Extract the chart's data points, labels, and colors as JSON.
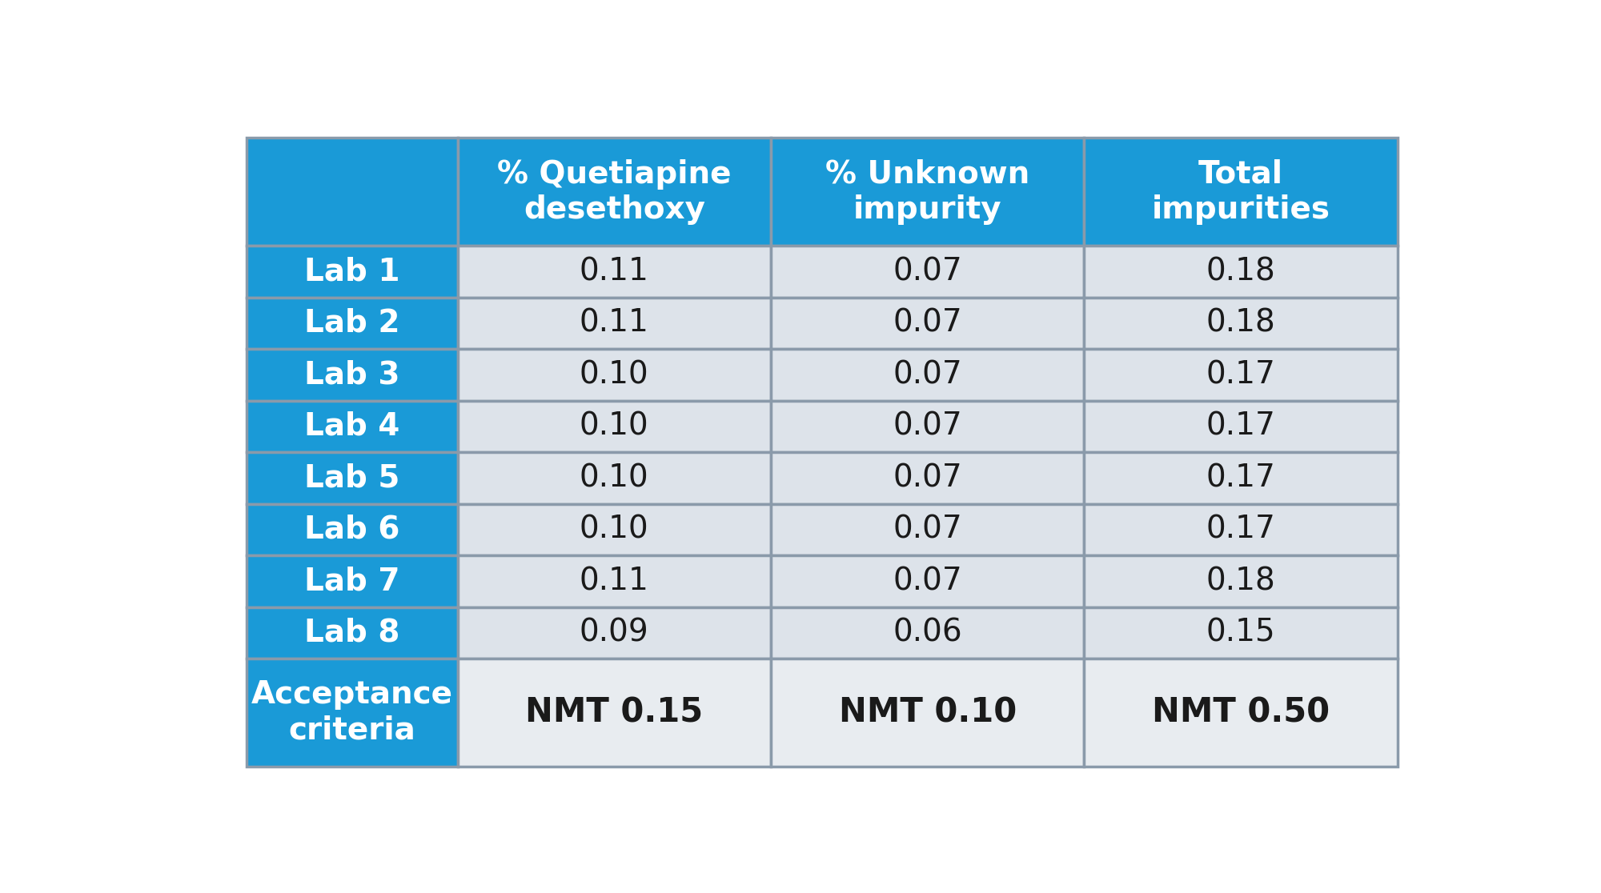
{
  "col_headers": [
    "% Quetiapine\ndesethoxy",
    "% Unknown\nimpurity",
    "Total\nimpurities"
  ],
  "row_labels": [
    "Lab 1",
    "Lab 2",
    "Lab 3",
    "Lab 4",
    "Lab 5",
    "Lab 6",
    "Lab 7",
    "Lab 8",
    "Acceptance\ncriteria"
  ],
  "table_data": [
    [
      "0.11",
      "0.07",
      "0.18"
    ],
    [
      "0.11",
      "0.07",
      "0.18"
    ],
    [
      "0.10",
      "0.07",
      "0.17"
    ],
    [
      "0.10",
      "0.07",
      "0.17"
    ],
    [
      "0.10",
      "0.07",
      "0.17"
    ],
    [
      "0.10",
      "0.07",
      "0.17"
    ],
    [
      "0.11",
      "0.07",
      "0.18"
    ],
    [
      "0.09",
      "0.06",
      "0.15"
    ],
    [
      "NMT 0.15",
      "NMT 0.10",
      "NMT 0.50"
    ]
  ],
  "header_bg": "#1a9ad7",
  "header_text": "#ffffff",
  "row_label_bg": "#1a9ad7",
  "row_label_text": "#ffffff",
  "data_bg": "#dde3ea",
  "data_text": "#1a1a1a",
  "acceptance_data_bg": "#e8ecf0",
  "line_color": "#8a9aaa",
  "outer_line_color": "#8a9aaa",
  "fig_bg": "#ffffff",
  "header_fontsize": 28,
  "label_fontsize": 28,
  "data_fontsize": 28,
  "acceptance_label_fontsize": 28,
  "acceptance_data_fontsize": 30
}
